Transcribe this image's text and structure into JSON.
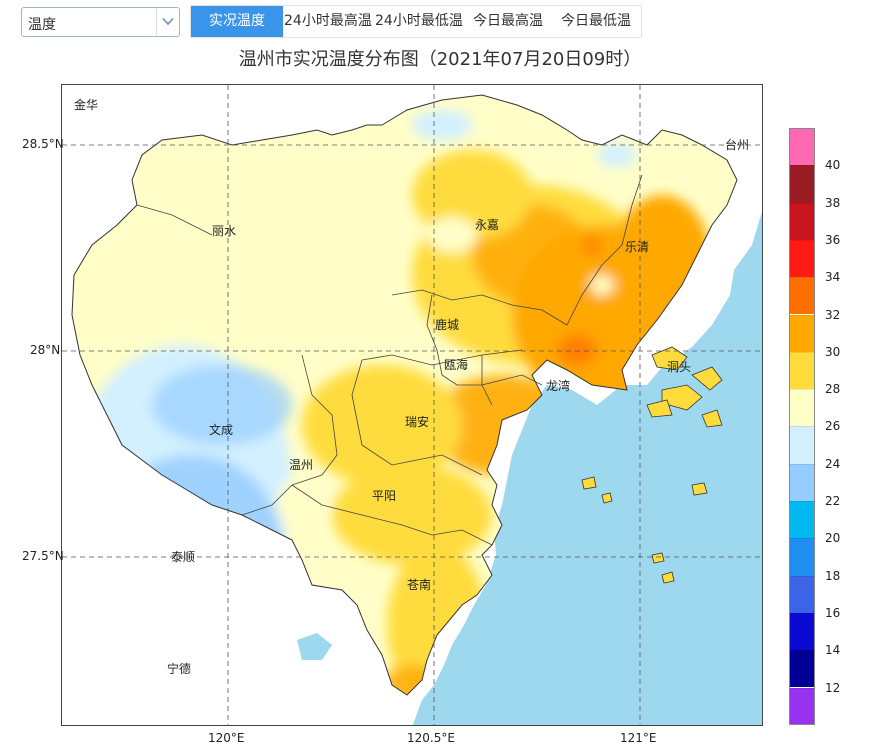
{
  "controls": {
    "element_select": {
      "value": "温度"
    },
    "tabs": [
      {
        "label": "实况温度",
        "active": true
      },
      {
        "label": "24小时最高温",
        "active": false
      },
      {
        "label": "24小时最低温",
        "active": false
      },
      {
        "label": "今日最高温",
        "active": false
      },
      {
        "label": "今日最低温",
        "active": false
      }
    ]
  },
  "map": {
    "title": "温州市实况温度分布图（2021年07月20日09时）",
    "lat_labels": [
      "28.5°N",
      "28°N",
      "27.5°N"
    ],
    "lon_labels": [
      "120°E",
      "120.5°E",
      "121°E"
    ],
    "place_labels": {
      "jinhua": "金华",
      "taizhou": "台州",
      "lishui": "丽水",
      "ningde": "宁德",
      "yongjia": "永嘉",
      "yueqing": "乐清",
      "lucheng": "鹿城",
      "ouhai": "瓯海",
      "longwan": "龙湾",
      "dongtou": "洞头",
      "ruian": "瑞安",
      "wencheng": "文成",
      "wenzhou": "温州",
      "pingyang": "平阳",
      "taishun": "泰顺",
      "cangnan": "苍南"
    },
    "colors": {
      "sea": "#9ed8ef",
      "land": "#ffffff"
    }
  },
  "legend": {
    "labels": [
      "40",
      "38",
      "36",
      "34",
      "32",
      "30",
      "28",
      "26",
      "24",
      "22",
      "20",
      "18",
      "16",
      "14",
      "12"
    ],
    "colors": [
      "#ff69b4",
      "#9b1c24",
      "#c8141c",
      "#ff1a14",
      "#ff7000",
      "#ffa800",
      "#ffdc3c",
      "#ffffc8",
      "#d2f0ff",
      "#96cdff",
      "#00b9f0",
      "#1e8ff0",
      "#3c64e6",
      "#0a0ad2",
      "#000096",
      "#9632f0"
    ]
  }
}
